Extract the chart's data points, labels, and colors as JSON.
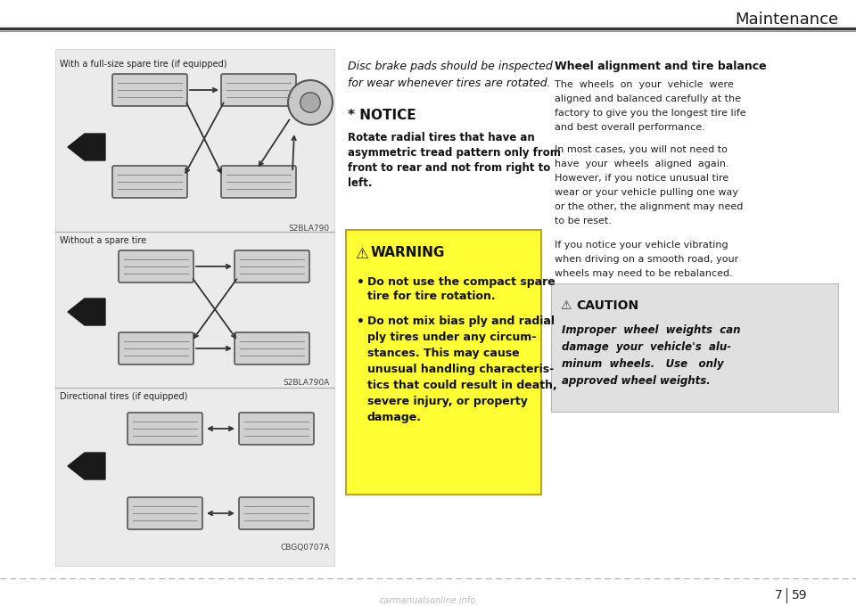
{
  "page_bg": "#ffffff",
  "header_title": "Maintenance",
  "page_num_left": "7",
  "page_num_right": "59",
  "watermark_text": "carmanualsonline.info",
  "section1_label": "With a full-size spare tire (if equipped)",
  "section2_label": "Without a spare tire",
  "section3_label": "Directional tires (if equipped)",
  "code1": "S2BLA790",
  "code2": "S2BLA790A",
  "code3": "CBGQ0707A",
  "italic_line1": "Disc brake pads should be inspected",
  "italic_line2": "for wear whenever tires are rotated.",
  "notice_head": "* NOTICE",
  "notice_body_line1": "Rotate radial tires that have an",
  "notice_body_line2": "asymmetric tread pattern only from",
  "notice_body_line3": "front to rear and not from right to",
  "notice_body_line4": "left.",
  "warning_head": "WARNING",
  "warning_item1a": "Do not use the compact spare",
  "warning_item1b": "tire for tire rotation.",
  "warning_item2a": "Do not mix bias ply and radial",
  "warning_item2b": "ply tires under any circum-",
  "warning_item2c": "stances. This may cause",
  "warning_item2d": "unusual handling characteris-",
  "warning_item2e": "tics that could result in death,",
  "warning_item2f": "severe injury, or property",
  "warning_item2g": "damage.",
  "right_title": "Wheel alignment and tire balance",
  "right_p1a": "The  wheels  on  your  vehicle  were",
  "right_p1b": "aligned and balanced carefully at the",
  "right_p1c": "factory to give you the longest tire life",
  "right_p1d": "and best overall performance.",
  "right_p2a": "In most cases, you will not need to",
  "right_p2b": "have  your  wheels  aligned  again.",
  "right_p2c": "However, if you notice unusual tire",
  "right_p2d": "wear or your vehicle pulling one way",
  "right_p2e": "or the other, the alignment may need",
  "right_p2f": "to be reset.",
  "right_p3a": "If you notice your vehicle vibrating",
  "right_p3b": "when driving on a smooth road, your",
  "right_p3c": "wheels may need to be rebalanced.",
  "caution_head": "CAUTION",
  "caution_b1": "Improper  wheel  weights  can",
  "caution_b2": "damage  your  vehicle's  alu-",
  "caution_b3": "minum  wheels.   Use   only",
  "caution_b4": "approved wheel weights."
}
